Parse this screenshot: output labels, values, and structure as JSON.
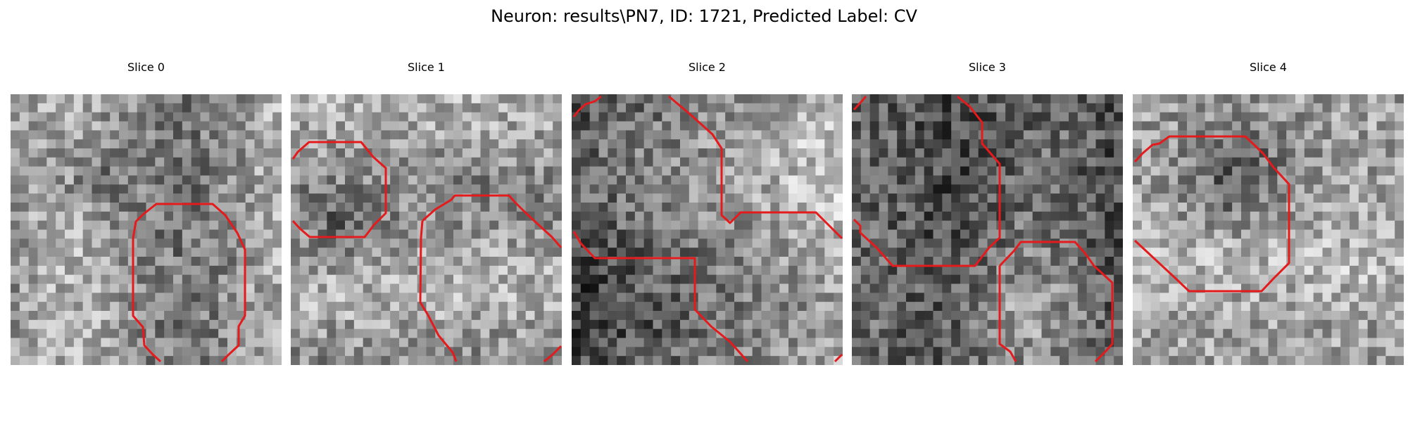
{
  "figure": {
    "title": "Neuron: results\\PN7, ID: 1721, Predicted Label: CV"
  },
  "panels": [
    {
      "title": "Slice 0",
      "contour_color": "#e41a1c"
    },
    {
      "title": "Slice 1",
      "contour_color": "#e41a1c"
    },
    {
      "title": "Slice 2",
      "contour_color": "#e41a1c"
    },
    {
      "title": "Slice 3",
      "contour_color": "#e41a1c"
    },
    {
      "title": "Slice 4",
      "contour_color": "#e41a1c"
    }
  ]
}
